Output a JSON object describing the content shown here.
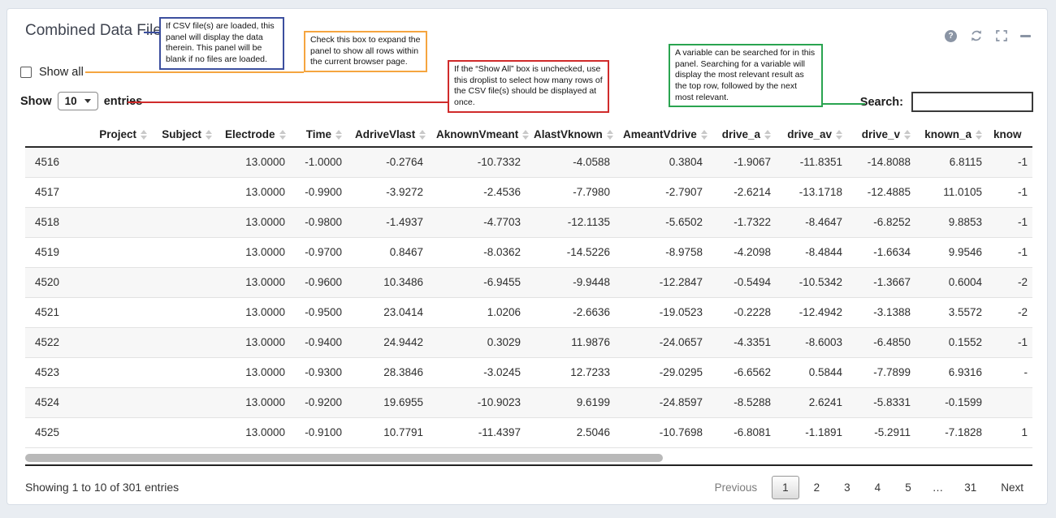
{
  "panel": {
    "title": "Combined Data File"
  },
  "icons": {
    "help": {
      "glyph": "?"
    },
    "color": "#8a94a4"
  },
  "controls": {
    "show_all_label": "Show all",
    "show_all_checked": false,
    "show_label": "Show",
    "page_size": "10",
    "entries_label": "entries",
    "search_label": "Search:",
    "search_value": ""
  },
  "annotations": {
    "csv_loaded": {
      "color": "#3c4f9e",
      "text": "If CSV file(s) are loaded, this panel will display the data therein. This panel will be blank if no files are loaded."
    },
    "show_all": {
      "color": "#f5a53f",
      "text": "Check this box to expand the panel to show all rows within the current browser page."
    },
    "droplist": {
      "color": "#d02b2b",
      "text": "If the “Show All” box is unchecked, use this droplist to select how many rows of the CSV file(s) should be displayed at once."
    },
    "search": {
      "color": "#2aa450",
      "text": "A variable can be searched for in this panel. Searching for a variable will display the most relevant result as the top row, followed by the next most relevant."
    }
  },
  "table": {
    "columns": [
      {
        "label": "",
        "sortable": false
      },
      {
        "label": "Project",
        "sortable": true
      },
      {
        "label": "Subject",
        "sortable": true
      },
      {
        "label": "Electrode",
        "sortable": true
      },
      {
        "label": "Time",
        "sortable": true
      },
      {
        "label": "AdriveVlast",
        "sortable": true
      },
      {
        "label": "AknownVmeant",
        "sortable": true
      },
      {
        "label": "AlastVknown",
        "sortable": true
      },
      {
        "label": "AmeantVdrive",
        "sortable": true
      },
      {
        "label": "drive_a",
        "sortable": true
      },
      {
        "label": "drive_av",
        "sortable": true
      },
      {
        "label": "drive_v",
        "sortable": true
      },
      {
        "label": "known_a",
        "sortable": true
      },
      {
        "label": "know",
        "sortable": false
      }
    ],
    "rows": [
      [
        "4516",
        "",
        "",
        "13.0000",
        "-1.0000",
        "-0.2764",
        "-10.7332",
        "-4.0588",
        "0.3804",
        "-1.9067",
        "-11.8351",
        "-14.8088",
        "6.8115",
        "-1"
      ],
      [
        "4517",
        "",
        "",
        "13.0000",
        "-0.9900",
        "-3.9272",
        "-2.4536",
        "-7.7980",
        "-2.7907",
        "-2.6214",
        "-13.1718",
        "-12.4885",
        "11.0105",
        "-1"
      ],
      [
        "4518",
        "",
        "",
        "13.0000",
        "-0.9800",
        "-1.4937",
        "-4.7703",
        "-12.1135",
        "-5.6502",
        "-1.7322",
        "-8.4647",
        "-6.8252",
        "9.8853",
        "-1"
      ],
      [
        "4519",
        "",
        "",
        "13.0000",
        "-0.9700",
        "0.8467",
        "-8.0362",
        "-14.5226",
        "-8.9758",
        "-4.2098",
        "-8.4844",
        "-1.6634",
        "9.9546",
        "-1"
      ],
      [
        "4520",
        "",
        "",
        "13.0000",
        "-0.9600",
        "10.3486",
        "-6.9455",
        "-9.9448",
        "-12.2847",
        "-0.5494",
        "-10.5342",
        "-1.3667",
        "0.6004",
        "-2"
      ],
      [
        "4521",
        "",
        "",
        "13.0000",
        "-0.9500",
        "23.0414",
        "1.0206",
        "-2.6636",
        "-19.0523",
        "-0.2228",
        "-12.4942",
        "-3.1388",
        "3.5572",
        "-2"
      ],
      [
        "4522",
        "",
        "",
        "13.0000",
        "-0.9400",
        "24.9442",
        "0.3029",
        "11.9876",
        "-24.0657",
        "-4.3351",
        "-8.6003",
        "-6.4850",
        "0.1552",
        "-1"
      ],
      [
        "4523",
        "",
        "",
        "13.0000",
        "-0.9300",
        "28.3846",
        "-3.0245",
        "12.7233",
        "-29.0295",
        "-6.6562",
        "0.5844",
        "-7.7899",
        "6.9316",
        "-"
      ],
      [
        "4524",
        "",
        "",
        "13.0000",
        "-0.9200",
        "19.6955",
        "-10.9023",
        "9.6199",
        "-24.8597",
        "-8.5288",
        "2.6241",
        "-5.8331",
        "-0.1599",
        ""
      ],
      [
        "4525",
        "",
        "",
        "13.0000",
        "-0.9100",
        "10.7791",
        "-11.4397",
        "2.5046",
        "-10.7698",
        "-6.8081",
        "-1.1891",
        "-5.2911",
        "-7.1828",
        "1"
      ]
    ]
  },
  "footer": {
    "info": "Showing 1 to 10 of 301 entries",
    "pagination": {
      "items": [
        "Previous",
        "1",
        "2",
        "3",
        "4",
        "5",
        "…",
        "31",
        "Next"
      ],
      "active": "1"
    }
  }
}
